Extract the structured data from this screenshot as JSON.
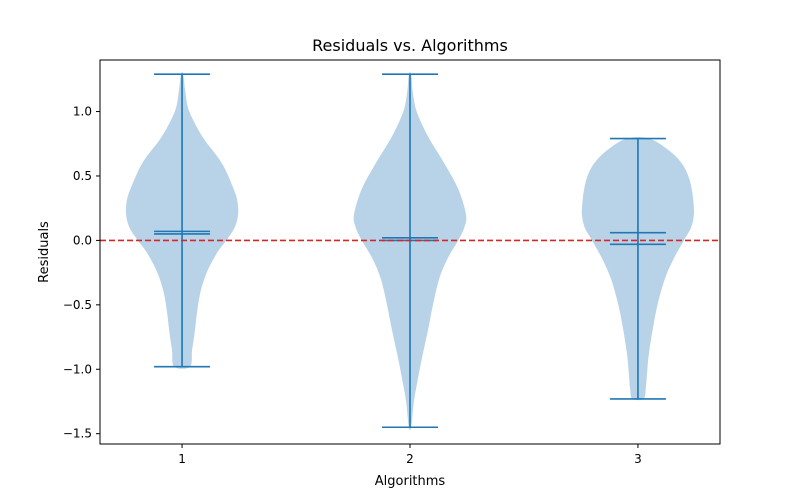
{
  "chart_data": {
    "type": "violin",
    "title": "Residuals vs. Algorithms",
    "xlabel": "Algorithms",
    "ylabel": "Residuals",
    "categories": [
      "1",
      "2",
      "3"
    ],
    "ylim": [
      -1.58,
      1.4
    ],
    "yticks": [
      -1.5,
      -1.0,
      -0.5,
      0.0,
      0.5,
      1.0
    ],
    "ytick_labels": [
      "−1.5",
      "−1.0",
      "−0.5",
      "0.0",
      "0.5",
      "1.0"
    ],
    "reference_line": {
      "y": 0.0,
      "style": "dashed",
      "color": "#d62728"
    },
    "violin_color": "#b8d3e8",
    "line_color": "#1f77b4",
    "grid": false,
    "series": [
      {
        "category": "1",
        "max": 1.29,
        "min": -0.98,
        "mean": 0.07,
        "median": 0.05,
        "density": [
          [
            1.29,
            0.02
          ],
          [
            1.15,
            0.06
          ],
          [
            1.0,
            0.13
          ],
          [
            0.8,
            0.37
          ],
          [
            0.6,
            0.71
          ],
          [
            0.4,
            0.92
          ],
          [
            0.3,
            0.99
          ],
          [
            0.2,
            1.0
          ],
          [
            0.1,
            0.94
          ],
          [
            0.0,
            0.79
          ],
          [
            -0.1,
            0.62
          ],
          [
            -0.25,
            0.44
          ],
          [
            -0.4,
            0.33
          ],
          [
            -0.55,
            0.27
          ],
          [
            -0.7,
            0.23
          ],
          [
            -0.85,
            0.18
          ],
          [
            -0.98,
            0.14
          ]
        ]
      },
      {
        "category": "2",
        "max": 1.29,
        "min": -1.45,
        "mean": 0.02,
        "median": 0.0,
        "density": [
          [
            1.29,
            0.02
          ],
          [
            1.15,
            0.05
          ],
          [
            1.0,
            0.12
          ],
          [
            0.8,
            0.33
          ],
          [
            0.6,
            0.61
          ],
          [
            0.4,
            0.86
          ],
          [
            0.2,
            1.0
          ],
          [
            0.1,
            0.97
          ],
          [
            0.0,
            0.86
          ],
          [
            -0.15,
            0.66
          ],
          [
            -0.3,
            0.52
          ],
          [
            -0.5,
            0.41
          ],
          [
            -0.7,
            0.32
          ],
          [
            -0.9,
            0.22
          ],
          [
            -1.1,
            0.13
          ],
          [
            -1.25,
            0.07
          ],
          [
            -1.45,
            0.02
          ]
        ]
      },
      {
        "category": "3",
        "max": 0.79,
        "min": -1.23,
        "mean": 0.06,
        "median": -0.03,
        "density": [
          [
            0.79,
            0.2
          ],
          [
            0.7,
            0.55
          ],
          [
            0.6,
            0.78
          ],
          [
            0.5,
            0.9
          ],
          [
            0.4,
            0.96
          ],
          [
            0.3,
            0.99
          ],
          [
            0.2,
            1.0
          ],
          [
            0.1,
            0.95
          ],
          [
            0.0,
            0.82
          ],
          [
            -0.15,
            0.63
          ],
          [
            -0.3,
            0.48
          ],
          [
            -0.5,
            0.35
          ],
          [
            -0.7,
            0.26
          ],
          [
            -0.9,
            0.19
          ],
          [
            -1.05,
            0.16
          ],
          [
            -1.15,
            0.14
          ],
          [
            -1.23,
            0.1
          ]
        ]
      }
    ]
  }
}
